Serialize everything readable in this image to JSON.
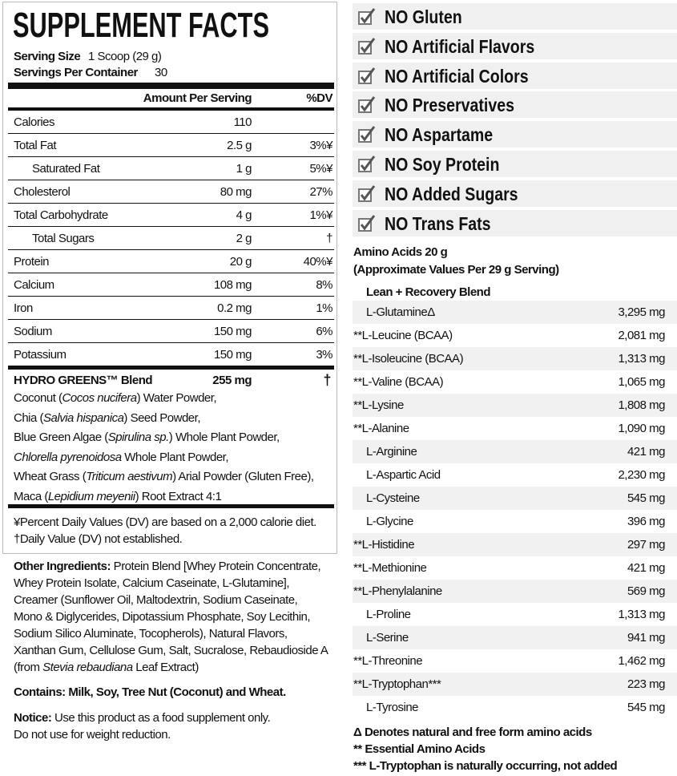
{
  "supplement_facts": {
    "title": "SUPPLEMENT FACTS",
    "serving_size": {
      "label": "Serving Size",
      "value": "1 Scoop (29 g)"
    },
    "servings_per_container": {
      "label": "Servings Per Container",
      "value": "30"
    },
    "columns": [
      "Amount Per Serving",
      "%DV"
    ],
    "rows": [
      {
        "name": "Calories",
        "amount": "110"
      },
      {
        "name": "Total Fat",
        "amount": "2.5 g",
        "dv": "3%¥",
        "sub": {
          "name": "Saturated Fat",
          "amount": "1 g",
          "dv": "5%¥"
        }
      },
      {
        "name": "Cholesterol",
        "amount": "80 mg",
        "dv": "27%"
      },
      {
        "name": "Total Carbohydrate",
        "amount": "4 g",
        "dv": "1%¥",
        "sub": {
          "name": "Total Sugars",
          "amount": "2 g",
          "dv": "†"
        }
      },
      {
        "name": "Protein",
        "amount": "20 g",
        "dv": "40%¥"
      },
      {
        "name": "Calcium",
        "amount": "108 mg",
        "dv": "8%"
      },
      {
        "name": "Iron",
        "amount": "0.2 mg",
        "dv": "1%"
      },
      {
        "name": "Sodium",
        "amount": "150 mg",
        "dv": "6%"
      },
      {
        "name": "Potassium",
        "amount": "150 mg",
        "dv": "3%"
      }
    ],
    "blend": {
      "name": "HYDRO GREENS™ Blend",
      "amount": "255 mg",
      "dv": "†",
      "ingredients": [
        [
          "Coconut (",
          {
            "text": "Cocos nucifera",
            "style": "italic"
          },
          ") Water Powder,"
        ],
        [
          "Chia (",
          {
            "text": "Salvia hispanica",
            "style": "italic"
          },
          ") Seed Powder,"
        ],
        [
          "Blue Green Algae (",
          {
            "text": "Spirulina sp.",
            "style": "italic"
          },
          ") Whole Plant Powder,"
        ],
        [
          {
            "text": "Chlorella pyrenoidosa",
            "style": "italic"
          },
          " Whole Plant Powder,"
        ],
        [
          "Wheat Grass (",
          {
            "text": "Triticum aestivum",
            "style": "italic"
          },
          ") Arial Powder (Gluten Free),"
        ],
        [
          "Maca (",
          {
            "text": "Lepidium meyenii",
            "style": "italic"
          },
          ") Root Extract 4:1"
        ]
      ]
    },
    "footnotes": [
      "¥Percent Daily Values (DV) are based on a 2,000 calorie diet.",
      "†Daily Value (DV) not established."
    ]
  },
  "other_ingredients": [
    [
      {
        "text": "Other Ingredients:",
        "style": "bold"
      },
      " Protein Blend [Whey Protein Concentrate,"
    ],
    [
      "Whey Protein Isolate, Calcium Caseinate, L-Glutamine],"
    ],
    [
      "Creamer (Sunflower Oil, Maltodextrin, Sodium Caseinate,"
    ],
    [
      "Mono & Diglycerides, Dipotassium Phosphate, Soy Lecithin,"
    ],
    [
      "Sodium Silico Aluminate, Tocopherols), Natural Flavors,"
    ],
    [
      "Xanthan Gum, Cellulose Gum, Salt, Sucralose, Rebaudioside A"
    ],
    [
      "(from ",
      {
        "text": "Stevia rebaudiana",
        "style": "italic"
      },
      " Leaf Extract)"
    ]
  ],
  "contains": [
    [
      {
        "text": "Contains: Milk, Soy, Tree Nut (Coconut) and Wheat.",
        "style": "bold"
      }
    ]
  ],
  "notice": [
    [
      {
        "text": "Notice:",
        "style": "bold"
      },
      " Use this product as a food supplement only."
    ],
    [
      "Do not use for weight reduction."
    ]
  ],
  "claims": [
    "NO Gluten",
    "NO Artificial Flavors",
    "NO Artificial Colors",
    "NO Preservatives",
    "NO Aspartame",
    "NO Soy Protein",
    "NO Added Sugars",
    "NO Trans Fats"
  ],
  "amino_acids": {
    "title": "Amino Acids 20 g",
    "subtitle": "(Approximate Values Per 29 g Serving)",
    "blend": "Lean + Recovery Blend",
    "rows": [
      [
        "L-GlutamineΔ",
        "3,295 mg"
      ],
      [
        "**L-Leucine (BCAA)",
        "2,081 mg"
      ],
      [
        "**L-Isoleucine (BCAA)",
        "1,313 mg"
      ],
      [
        "**L-Valine (BCAA)",
        "1,065 mg"
      ],
      [
        "**L-Lysine",
        "1,808 mg"
      ],
      [
        "**L-Alanine",
        "1,090 mg"
      ],
      [
        "L-Arginine",
        "421 mg"
      ],
      [
        "L-Aspartic Acid",
        "2,230 mg"
      ],
      [
        "L-Cysteine",
        "545 mg"
      ],
      [
        "L-Glycine",
        "396 mg"
      ],
      [
        "**L-Histidine",
        "297 mg"
      ],
      [
        "**L-Methionine",
        "421 mg"
      ],
      [
        "**L-Phenylalanine",
        "569 mg"
      ],
      [
        "L-Proline",
        "1,313 mg"
      ],
      [
        "L-Serine",
        "941 mg"
      ],
      [
        "**L-Threonine",
        "1,462 mg"
      ],
      [
        "**L-Tryptophan***",
        "223 mg"
      ],
      [
        "L-Tyrosine",
        "545 mg"
      ]
    ],
    "footnotes": [
      "Δ Denotes natural and free form amino acids",
      "** Essential Amino Acids",
      "*** L-Tryptophan is naturally occurring, not added"
    ]
  }
}
